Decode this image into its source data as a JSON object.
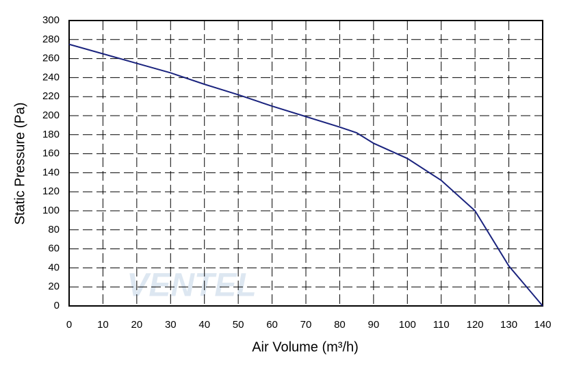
{
  "chart_data": {
    "type": "line",
    "x_label": "Air Volume (m³/h)",
    "y_label": "Static Pressure (Pa)",
    "watermark": "VENTEL",
    "x": [
      0,
      10,
      20,
      30,
      40,
      50,
      60,
      70,
      80,
      85,
      90,
      100,
      110,
      120,
      130,
      140
    ],
    "series": [
      {
        "color": "#1a237e",
        "values": [
          275,
          265,
          255,
          245,
          233,
          222,
          210,
          199,
          188,
          182,
          171,
          155,
          132,
          100,
          42,
          0
        ]
      }
    ],
    "xlim": [
      0,
      140
    ],
    "xticks": [
      0,
      10,
      20,
      30,
      40,
      50,
      60,
      70,
      80,
      90,
      100,
      110,
      120,
      130,
      140
    ],
    "ylim": [
      0,
      300
    ],
    "yticks": [
      0,
      20,
      40,
      60,
      80,
      100,
      120,
      140,
      160,
      180,
      200,
      220,
      240,
      260,
      280,
      300
    ],
    "grid": true
  }
}
